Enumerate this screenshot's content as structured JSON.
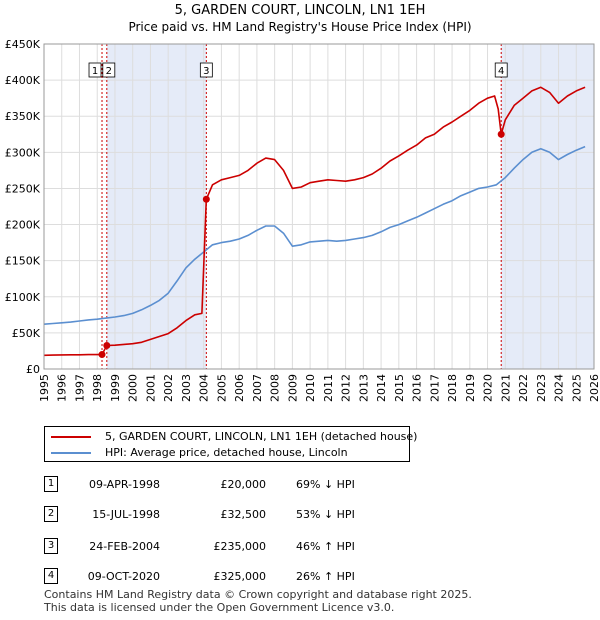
{
  "title": "5, GARDEN COURT, LINCOLN, LN1 1EH",
  "subtitle": "Price paid vs. HM Land Registry's House Price Index (HPI)",
  "chart_data": {
    "type": "line",
    "title": "5, GARDEN COURT, LINCOLN, LN1 1EH",
    "subtitle": "Price paid vs. HM Land Registry's House Price Index (HPI)",
    "xlim": [
      1995,
      2026
    ],
    "ylim": [
      0,
      450000
    ],
    "x_ticks": [
      1995,
      1996,
      1997,
      1998,
      1999,
      2000,
      2001,
      2002,
      2003,
      2004,
      2005,
      2006,
      2007,
      2008,
      2009,
      2010,
      2011,
      2012,
      2013,
      2014,
      2015,
      2016,
      2017,
      2018,
      2019,
      2020,
      2021,
      2022,
      2023,
      2024,
      2025,
      2026
    ],
    "y_ticks": [
      0,
      50000,
      100000,
      150000,
      200000,
      250000,
      300000,
      350000,
      400000,
      450000
    ],
    "y_tick_labels": [
      "£0",
      "£50K",
      "£100K",
      "£150K",
      "£200K",
      "£250K",
      "£300K",
      "£350K",
      "£400K",
      "£450K"
    ],
    "grid": true,
    "colors": {
      "property": "#cc0000",
      "hpi": "#5b8fd0",
      "shade": "#e5ebf8",
      "marker_line": "#cc0000"
    },
    "series": [
      {
        "name": "5, GARDEN COURT, LINCOLN, LN1 1EH (detached house)",
        "color": "#cc0000",
        "points": [
          [
            1995.0,
            19000
          ],
          [
            1995.5,
            19200
          ],
          [
            1996.0,
            19500
          ],
          [
            1996.5,
            19600
          ],
          [
            1997.0,
            19700
          ],
          [
            1997.5,
            19900
          ],
          [
            1998.0,
            20000
          ],
          [
            1998.27,
            20000
          ],
          [
            1998.54,
            32500
          ],
          [
            1999.0,
            33000
          ],
          [
            1999.5,
            34000
          ],
          [
            2000.0,
            35000
          ],
          [
            2000.5,
            37000
          ],
          [
            2001.0,
            41000
          ],
          [
            2001.5,
            45000
          ],
          [
            2002.0,
            49000
          ],
          [
            2002.5,
            57000
          ],
          [
            2003.0,
            67000
          ],
          [
            2003.5,
            75000
          ],
          [
            2003.9,
            77000
          ],
          [
            2004.15,
            235000
          ],
          [
            2004.5,
            255000
          ],
          [
            2005.0,
            262000
          ],
          [
            2005.5,
            265000
          ],
          [
            2006.0,
            268000
          ],
          [
            2006.5,
            275000
          ],
          [
            2007.0,
            285000
          ],
          [
            2007.5,
            292000
          ],
          [
            2008.0,
            290000
          ],
          [
            2008.5,
            275000
          ],
          [
            2009.0,
            250000
          ],
          [
            2009.5,
            252000
          ],
          [
            2010.0,
            258000
          ],
          [
            2010.5,
            260000
          ],
          [
            2011.0,
            262000
          ],
          [
            2011.5,
            261000
          ],
          [
            2012.0,
            260000
          ],
          [
            2012.5,
            262000
          ],
          [
            2013.0,
            265000
          ],
          [
            2013.5,
            270000
          ],
          [
            2014.0,
            278000
          ],
          [
            2014.5,
            288000
          ],
          [
            2015.0,
            295000
          ],
          [
            2015.5,
            303000
          ],
          [
            2016.0,
            310000
          ],
          [
            2016.5,
            320000
          ],
          [
            2017.0,
            325000
          ],
          [
            2017.5,
            335000
          ],
          [
            2018.0,
            342000
          ],
          [
            2018.5,
            350000
          ],
          [
            2019.0,
            358000
          ],
          [
            2019.5,
            368000
          ],
          [
            2020.0,
            375000
          ],
          [
            2020.4,
            378000
          ],
          [
            2020.6,
            360000
          ],
          [
            2020.77,
            325000
          ],
          [
            2021.0,
            345000
          ],
          [
            2021.5,
            365000
          ],
          [
            2022.0,
            375000
          ],
          [
            2022.5,
            385000
          ],
          [
            2023.0,
            390000
          ],
          [
            2023.5,
            383000
          ],
          [
            2024.0,
            368000
          ],
          [
            2024.5,
            378000
          ],
          [
            2025.0,
            385000
          ],
          [
            2025.5,
            390000
          ]
        ]
      },
      {
        "name": "HPI: Average price, detached house, Lincoln",
        "color": "#5b8fd0",
        "points": [
          [
            1995.0,
            62000
          ],
          [
            1995.5,
            63000
          ],
          [
            1996.0,
            64000
          ],
          [
            1996.5,
            65000
          ],
          [
            1997.0,
            66500
          ],
          [
            1997.5,
            68000
          ],
          [
            1998.0,
            69000
          ],
          [
            1998.5,
            70500
          ],
          [
            1999.0,
            72000
          ],
          [
            1999.5,
            74000
          ],
          [
            2000.0,
            77000
          ],
          [
            2000.5,
            82000
          ],
          [
            2001.0,
            88000
          ],
          [
            2001.5,
            95000
          ],
          [
            2002.0,
            105000
          ],
          [
            2002.5,
            122000
          ],
          [
            2003.0,
            140000
          ],
          [
            2003.5,
            152000
          ],
          [
            2004.0,
            162000
          ],
          [
            2004.5,
            172000
          ],
          [
            2005.0,
            175000
          ],
          [
            2005.5,
            177000
          ],
          [
            2006.0,
            180000
          ],
          [
            2006.5,
            185000
          ],
          [
            2007.0,
            192000
          ],
          [
            2007.5,
            198000
          ],
          [
            2008.0,
            198000
          ],
          [
            2008.5,
            188000
          ],
          [
            2009.0,
            170000
          ],
          [
            2009.5,
            172000
          ],
          [
            2010.0,
            176000
          ],
          [
            2010.5,
            177000
          ],
          [
            2011.0,
            178000
          ],
          [
            2011.5,
            177000
          ],
          [
            2012.0,
            178000
          ],
          [
            2012.5,
            180000
          ],
          [
            2013.0,
            182000
          ],
          [
            2013.5,
            185000
          ],
          [
            2014.0,
            190000
          ],
          [
            2014.5,
            196000
          ],
          [
            2015.0,
            200000
          ],
          [
            2015.5,
            205000
          ],
          [
            2016.0,
            210000
          ],
          [
            2016.5,
            216000
          ],
          [
            2017.0,
            222000
          ],
          [
            2017.5,
            228000
          ],
          [
            2018.0,
            233000
          ],
          [
            2018.5,
            240000
          ],
          [
            2019.0,
            245000
          ],
          [
            2019.5,
            250000
          ],
          [
            2020.0,
            252000
          ],
          [
            2020.5,
            255000
          ],
          [
            2021.0,
            265000
          ],
          [
            2021.5,
            278000
          ],
          [
            2022.0,
            290000
          ],
          [
            2022.5,
            300000
          ],
          [
            2023.0,
            305000
          ],
          [
            2023.5,
            300000
          ],
          [
            2024.0,
            290000
          ],
          [
            2024.5,
            297000
          ],
          [
            2025.0,
            303000
          ],
          [
            2025.5,
            308000
          ]
        ]
      }
    ],
    "shaded_ranges": [
      [
        1998.54,
        2004.15
      ],
      [
        2020.77,
        2026.0
      ]
    ],
    "sales": [
      {
        "num": "1",
        "date": "09-APR-1998",
        "price": "£20,000",
        "hpi": "69% ↓ HPI",
        "x": 1998.27,
        "value": 20000
      },
      {
        "num": "2",
        "date": "15-JUL-1998",
        "price": "£32,500",
        "hpi": "53% ↓ HPI",
        "x": 1998.54,
        "value": 32500
      },
      {
        "num": "3",
        "date": "24-FEB-2004",
        "price": "£235,000",
        "hpi": "46% ↑ HPI",
        "x": 2004.15,
        "value": 235000
      },
      {
        "num": "4",
        "date": "09-OCT-2020",
        "price": "£325,000",
        "hpi": "26% ↑ HPI",
        "x": 2020.77,
        "value": 325000
      }
    ]
  },
  "legend": {
    "property_label": "5, GARDEN COURT, LINCOLN, LN1 1EH (detached house)",
    "hpi_label": "HPI: Average price, detached house, Lincoln"
  },
  "footer": {
    "line1": "Contains HM Land Registry data © Crown copyright and database right 2025.",
    "line2": "This data is licensed under the Open Government Licence v3.0."
  }
}
